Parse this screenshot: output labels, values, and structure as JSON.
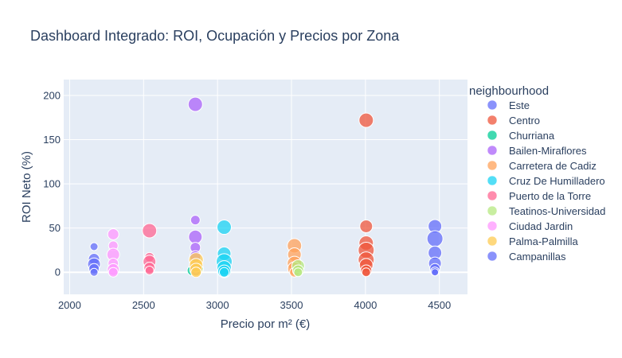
{
  "chart_data": {
    "type": "scatter",
    "title": "Dashboard Integrado: ROI, Ocupación y Precios por Zona",
    "xlabel": "Precio por m² (€)",
    "ylabel": "ROI Neto (%)",
    "xlim": [
      1960,
      4690
    ],
    "ylim": [
      -25,
      218
    ],
    "xticks": [
      2000,
      2500,
      3000,
      3500,
      4000,
      4500
    ],
    "yticks": [
      0,
      50,
      100,
      150,
      200
    ],
    "legend_title": "neighbourhood",
    "legend_position": "right",
    "series": [
      {
        "name": "Este",
        "color": "#636efa",
        "points": [
          [
            4470,
            52,
            13
          ],
          [
            4470,
            38,
            16
          ],
          [
            4470,
            22,
            13
          ],
          [
            4470,
            10,
            12
          ],
          [
            4470,
            4,
            9
          ],
          [
            4470,
            1,
            7
          ],
          [
            4470,
            0,
            5
          ]
        ]
      },
      {
        "name": "Centro",
        "color": "#EF553B",
        "points": [
          [
            4005,
            172,
            14
          ],
          [
            4005,
            52,
            12
          ],
          [
            4005,
            33,
            14
          ],
          [
            4005,
            25,
            16
          ],
          [
            4005,
            14,
            16
          ],
          [
            4005,
            8,
            13
          ],
          [
            4005,
            2,
            10
          ],
          [
            4005,
            0,
            7
          ]
        ]
      },
      {
        "name": "Churriana",
        "color": "#00cc96",
        "points": [
          [
            2830,
            2,
            9
          ],
          [
            2870,
            4,
            9
          ],
          [
            2860,
            0,
            7
          ]
        ]
      },
      {
        "name": "Bailen-Miraflores",
        "color": "#ab63fa",
        "points": [
          [
            2850,
            190,
            14
          ],
          [
            2850,
            59,
            8
          ],
          [
            2850,
            40,
            13
          ],
          [
            2850,
            28,
            9
          ],
          [
            2850,
            18,
            10
          ],
          [
            2850,
            6,
            10
          ],
          [
            2850,
            0,
            7
          ]
        ]
      },
      {
        "name": "Carretera de Cadiz",
        "color": "#FFA15A",
        "points": [
          [
            3520,
            30,
            14
          ],
          [
            3520,
            20,
            13
          ],
          [
            3520,
            10,
            14
          ],
          [
            3520,
            4,
            13
          ],
          [
            3520,
            0,
            8
          ]
        ]
      },
      {
        "name": "Cruz De Humilladero",
        "color": "#19d3f3",
        "points": [
          [
            3045,
            51,
            14
          ],
          [
            3045,
            21,
            13
          ],
          [
            3045,
            12,
            16
          ],
          [
            3045,
            5,
            14
          ],
          [
            3045,
            1,
            12
          ],
          [
            3045,
            0,
            8
          ]
        ]
      },
      {
        "name": "Puerto de la Torre",
        "color": "#FF6692",
        "points": [
          [
            2540,
            47,
            14
          ],
          [
            2540,
            17,
            8
          ],
          [
            2540,
            12,
            12
          ],
          [
            2540,
            5,
            10
          ],
          [
            2540,
            2,
            7
          ]
        ]
      },
      {
        "name": "Teatinos-Universidad",
        "color": "#B6E880",
        "points": [
          [
            3545,
            7,
            12
          ],
          [
            3545,
            2,
            10
          ],
          [
            3545,
            0,
            7
          ]
        ]
      },
      {
        "name": "Ciudad Jardin",
        "color": "#FF97FF",
        "points": [
          [
            2295,
            43,
            10
          ],
          [
            2295,
            30,
            8
          ],
          [
            2295,
            20,
            12
          ],
          [
            2295,
            10,
            9
          ],
          [
            2295,
            3,
            11
          ],
          [
            2295,
            0,
            8
          ]
        ]
      },
      {
        "name": "Palma-Palmilla",
        "color": "#FECB52",
        "points": [
          [
            2855,
            14,
            14
          ],
          [
            2855,
            8,
            13
          ],
          [
            2855,
            3,
            12
          ],
          [
            2855,
            0,
            9
          ]
        ]
      },
      {
        "name": "Campanillas",
        "color": "#636efa",
        "points": [
          [
            2165,
            29,
            6
          ],
          [
            2165,
            15,
            10
          ],
          [
            2165,
            9,
            12
          ],
          [
            2165,
            4,
            9
          ],
          [
            2165,
            0,
            6
          ]
        ]
      }
    ]
  }
}
